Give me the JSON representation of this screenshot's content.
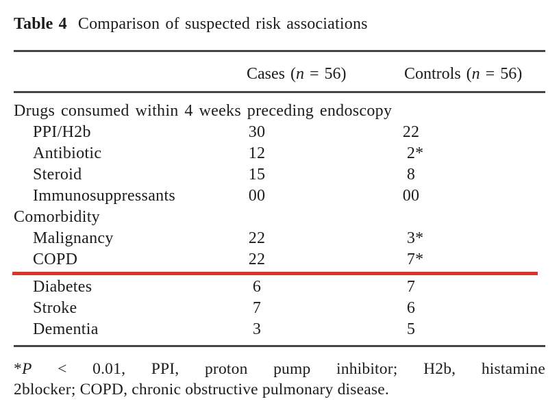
{
  "colors": {
    "annotation_red": "#dd3327",
    "rule_gray": "#454545",
    "background": "#ffffff"
  },
  "document": {
    "table_label": "Table 4",
    "table_caption": "Comparison of suspected risk associations",
    "header": {
      "cases": {
        "pre": "Cases (",
        "n": "n",
        "post": " = 56)"
      },
      "controls": {
        "pre": "Controls (",
        "n": "n",
        "post": " = 56)"
      }
    },
    "sections": [
      {
        "header": "Drugs consumed within 4 weeks preceding endoscopy",
        "rows": [
          {
            "label": "PPI/H2b",
            "cases": "30",
            "controls": "22",
            "controls_flag": "",
            "red_underline": false
          },
          {
            "label": "Antibiotic",
            "cases": "12",
            "controls": "2",
            "controls_flag": "*",
            "red_underline": false
          },
          {
            "label": "Steroid",
            "cases": "15",
            "controls": "8",
            "controls_flag": "",
            "red_underline": false
          },
          {
            "label": "Immunosuppressants",
            "cases": "00",
            "controls": "00",
            "controls_flag": "",
            "red_underline": false
          }
        ]
      },
      {
        "header": "Comorbidity",
        "rows": [
          {
            "label": "Malignancy",
            "cases": "22",
            "controls": "3",
            "controls_flag": "*",
            "red_underline": false
          },
          {
            "label": "COPD",
            "cases": "22",
            "controls": "7",
            "controls_flag": "*",
            "red_underline": true
          },
          {
            "label": "Diabetes",
            "cases": "6",
            "controls": "7",
            "controls_flag": "",
            "red_underline": false
          },
          {
            "label": "Stroke",
            "cases": "7",
            "controls": "6",
            "controls_flag": "",
            "red_underline": false
          },
          {
            "label": "Dementia",
            "cases": "3",
            "controls": "5",
            "controls_flag": "",
            "red_underline": false
          }
        ]
      }
    ],
    "footnote": {
      "line1": {
        "star": "*",
        "p": "P",
        "rest": " < 0.01, PPI, proton pump inhibitor; H2b, histamine"
      },
      "line2": "2blocker; COPD, chronic obstructive pulmonary disease."
    }
  }
}
